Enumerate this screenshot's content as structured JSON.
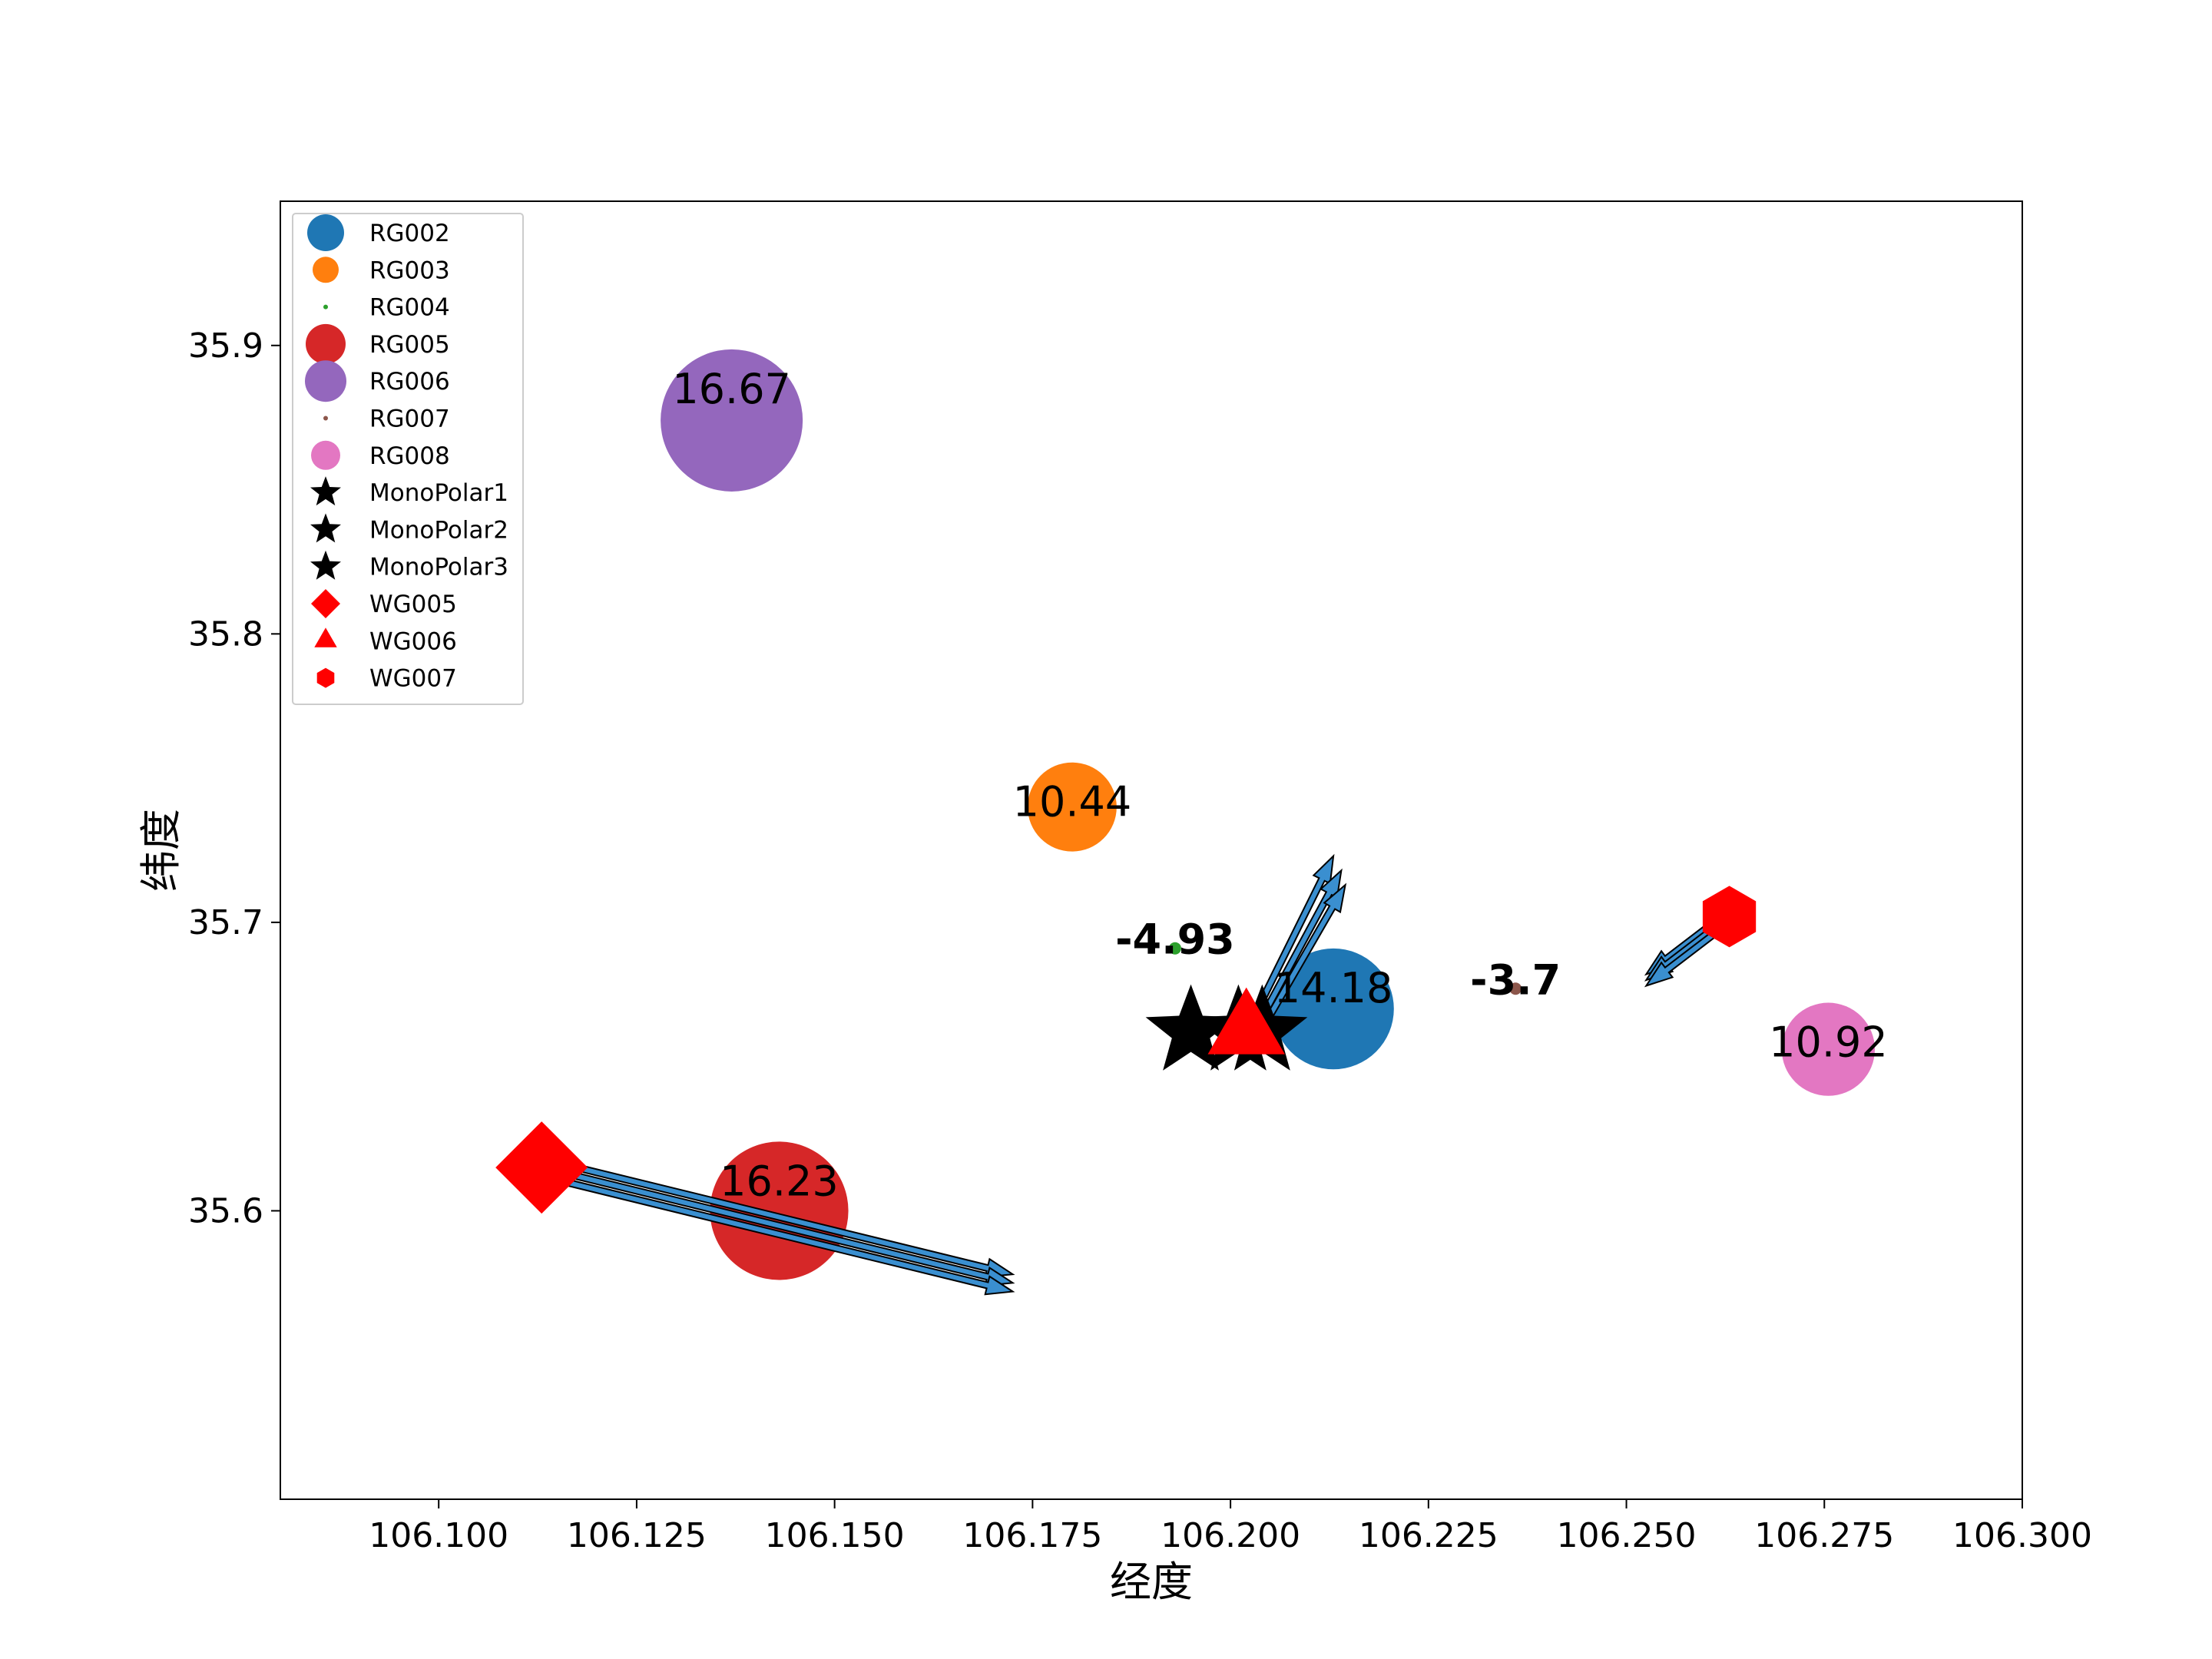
{
  "chart_data": {
    "type": "scatter",
    "title": "",
    "xlabel": "经度",
    "ylabel": "纬度",
    "xlim": [
      106.08,
      106.3
    ],
    "ylim": [
      35.5,
      35.95
    ],
    "xticks": [
      {
        "v": 106.1,
        "label": "106.100"
      },
      {
        "v": 106.125,
        "label": "106.125"
      },
      {
        "v": 106.15,
        "label": "106.150"
      },
      {
        "v": 106.175,
        "label": "106.175"
      },
      {
        "v": 106.2,
        "label": "106.200"
      },
      {
        "v": 106.225,
        "label": "106.225"
      },
      {
        "v": 106.25,
        "label": "106.250"
      },
      {
        "v": 106.275,
        "label": "106.275"
      },
      {
        "v": 106.3,
        "label": "106.300"
      }
    ],
    "yticks": [
      {
        "v": 35.6,
        "label": "35.6"
      },
      {
        "v": 35.7,
        "label": "35.7"
      },
      {
        "v": 35.8,
        "label": "35.8"
      },
      {
        "v": 35.9,
        "label": "35.9"
      }
    ],
    "grid": false,
    "legend_position": "top-left",
    "rain_gauges": [
      {
        "name": "RG002",
        "x": 106.213,
        "y": 35.67,
        "value": 14.18,
        "label": "14.18",
        "bold": false,
        "color": "#1f77b4"
      },
      {
        "name": "RG003",
        "x": 106.18,
        "y": 35.74,
        "value": 10.44,
        "label": "10.44",
        "bold": false,
        "color": "#ff7f0e"
      },
      {
        "name": "RG004",
        "x": 106.193,
        "y": 35.691,
        "value": -4.93,
        "label": "-4.93",
        "bold": true,
        "color": "#2ca02c"
      },
      {
        "name": "RG005",
        "x": 106.143,
        "y": 35.6,
        "value": 16.23,
        "label": "16.23",
        "bold": false,
        "color": "#d62728"
      },
      {
        "name": "RG006",
        "x": 106.137,
        "y": 35.874,
        "value": 16.67,
        "label": "16.67",
        "bold": false,
        "color": "#9467bd"
      },
      {
        "name": "RG007",
        "x": 106.236,
        "y": 35.677,
        "value": -3.7,
        "label": "-3.7",
        "bold": true,
        "color": "#8c564b"
      },
      {
        "name": "RG008",
        "x": 106.2755,
        "y": 35.656,
        "value": 10.92,
        "label": "10.92",
        "bold": false,
        "color": "#e377c2"
      }
    ],
    "monopolar": [
      {
        "name": "MonoPolar1",
        "x": 106.195,
        "y": 35.662,
        "color": "#000000"
      },
      {
        "name": "MonoPolar2",
        "x": 106.201,
        "y": 35.662,
        "color": "#000000"
      },
      {
        "name": "MonoPolar3",
        "x": 106.204,
        "y": 35.662,
        "color": "#000000"
      }
    ],
    "wind_gauges": [
      {
        "name": "WG005",
        "x": 106.113,
        "y": 35.615,
        "marker": "diamond",
        "color": "#ff0000",
        "arrows": [
          {
            "x": 106.113,
            "y": 35.618,
            "dx": 0.0595,
            "dy": -0.04
          },
          {
            "x": 106.113,
            "y": 35.615,
            "dx": 0.0595,
            "dy": -0.04
          },
          {
            "x": 106.113,
            "y": 35.612,
            "dx": 0.0595,
            "dy": -0.04
          }
        ]
      },
      {
        "name": "WG006",
        "x": 106.202,
        "y": 35.662,
        "marker": "triangle",
        "color": "#ff0000",
        "arrows": [
          {
            "x": 106.202,
            "y": 35.662,
            "dx": 0.011,
            "dy": 0.061
          },
          {
            "x": 106.203,
            "y": 35.662,
            "dx": 0.011,
            "dy": 0.056
          },
          {
            "x": 106.204,
            "y": 35.663,
            "dx": 0.0105,
            "dy": 0.05
          }
        ]
      },
      {
        "name": "WG007",
        "x": 106.263,
        "y": 35.702,
        "marker": "hexagon",
        "color": "#ff0000",
        "arrows": [
          {
            "x": 106.263,
            "y": 35.704,
            "dx": -0.0105,
            "dy": -0.022
          },
          {
            "x": 106.263,
            "y": 35.702,
            "dx": -0.0105,
            "dy": -0.022
          },
          {
            "x": 106.263,
            "y": 35.7,
            "dx": -0.0105,
            "dy": -0.022
          }
        ]
      }
    ],
    "arrow_color": "#3a8fd0",
    "legend": [
      {
        "label": "RG002",
        "marker": "circle",
        "color": "#1f77b4",
        "size": 24
      },
      {
        "label": "RG003",
        "marker": "circle",
        "color": "#ff7f0e",
        "size": 17
      },
      {
        "label": "RG004",
        "marker": "circle",
        "color": "#2ca02c",
        "size": 3
      },
      {
        "label": "RG005",
        "marker": "circle",
        "color": "#d62728",
        "size": 26
      },
      {
        "label": "RG006",
        "marker": "circle",
        "color": "#9467bd",
        "size": 27
      },
      {
        "label": "RG007",
        "marker": "circle",
        "color": "#8c564b",
        "size": 3
      },
      {
        "label": "RG008",
        "marker": "circle",
        "color": "#e377c2",
        "size": 19
      },
      {
        "label": "MonoPolar1",
        "marker": "star",
        "color": "#000000",
        "size": 21
      },
      {
        "label": "MonoPolar2",
        "marker": "star",
        "color": "#000000",
        "size": 21
      },
      {
        "label": "MonoPolar3",
        "marker": "star",
        "color": "#000000",
        "size": 21
      },
      {
        "label": "WG005",
        "marker": "diamond",
        "color": "#ff0000",
        "size": 19
      },
      {
        "label": "WG006",
        "marker": "triangle",
        "color": "#ff0000",
        "size": 17
      },
      {
        "label": "WG007",
        "marker": "hexagon",
        "color": "#ff0000",
        "size": 13
      }
    ]
  }
}
